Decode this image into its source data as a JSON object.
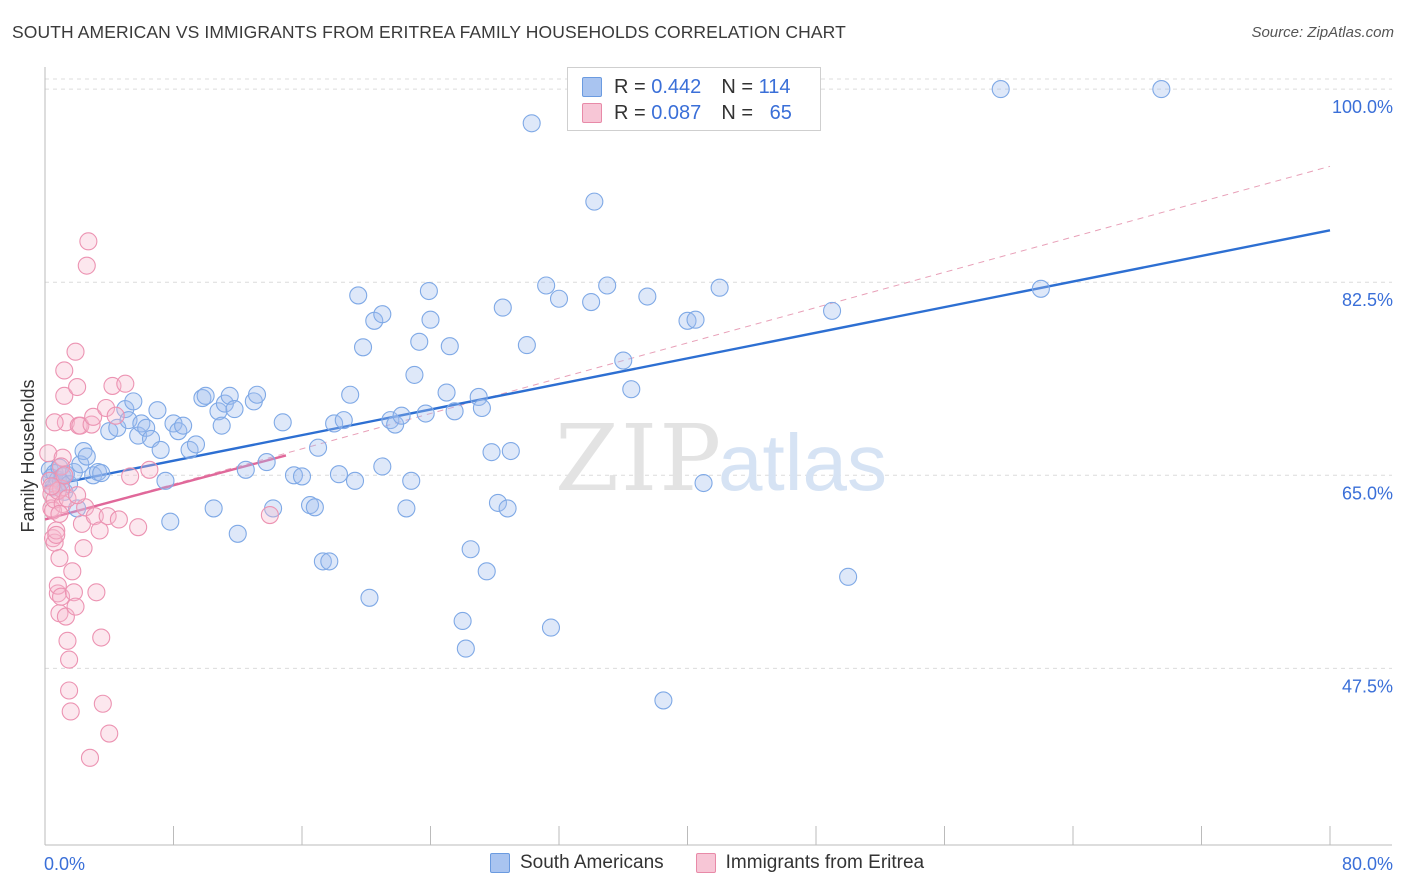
{
  "title": "SOUTH AMERICAN VS IMMIGRANTS FROM ERITREA FAMILY HOUSEHOLDS CORRELATION CHART",
  "source": "Source: ZipAtlas.com",
  "watermark": {
    "zip": "ZIP",
    "atlas": "atlas"
  },
  "legend": {
    "r_label": "R =",
    "n_label": "N =",
    "rows": [
      {
        "r": "0.442",
        "n": "114",
        "color": "#a9c4f0",
        "stroke": "#6b9be0"
      },
      {
        "r": "0.087",
        "n": "65",
        "color": "#f7b9cd",
        "stroke": "#e88aa8"
      }
    ]
  },
  "bottom_legend": [
    "South Americans",
    "Immigrants from Eritrea"
  ],
  "chart_data": {
    "type": "scatter",
    "ylabel": "Family Households",
    "xlim": [
      0,
      80
    ],
    "ylim": [
      31.5,
      102
    ],
    "x_ticks": [
      "0.0%",
      "80.0%"
    ],
    "y_ticks": [
      {
        "value": 47.5,
        "label": "47.5%"
      },
      {
        "value": 65.0,
        "label": "65.0%"
      },
      {
        "value": 82.5,
        "label": "82.5%"
      },
      {
        "value": 100.0,
        "label": "100.0%"
      }
    ],
    "grid": true,
    "series": [
      {
        "name": "South Americans",
        "color": "#7fa9e6",
        "fill": "rgba(160,190,238,0.35)",
        "trend": {
          "x0": 0,
          "y0": 64.0,
          "x1": 80,
          "y1": 87.2,
          "color": "#2d6fd2"
        },
        "points": [
          [
            0.3,
            65.5
          ],
          [
            0.4,
            64.8
          ],
          [
            0.5,
            63.9
          ],
          [
            0.6,
            65.2
          ],
          [
            0.7,
            64.1
          ],
          [
            0.8,
            64.6
          ],
          [
            0.9,
            65.7
          ],
          [
            1.0,
            64.4
          ],
          [
            1.1,
            64.9
          ],
          [
            1.2,
            63.5
          ],
          [
            1.3,
            65.1
          ],
          [
            1.5,
            64.2
          ],
          [
            1.8,
            65.3
          ],
          [
            2.0,
            62.0
          ],
          [
            2.2,
            66.0
          ],
          [
            2.4,
            67.2
          ],
          [
            2.6,
            66.7
          ],
          [
            3.0,
            65.0
          ],
          [
            3.3,
            65.3
          ],
          [
            3.5,
            65.2
          ],
          [
            4.0,
            69.0
          ],
          [
            4.5,
            69.3
          ],
          [
            5.0,
            71.0
          ],
          [
            5.2,
            70.0
          ],
          [
            5.5,
            71.7
          ],
          [
            5.8,
            68.6
          ],
          [
            6.0,
            69.7
          ],
          [
            6.3,
            69.3
          ],
          [
            6.6,
            68.3
          ],
          [
            7.0,
            70.9
          ],
          [
            7.2,
            67.3
          ],
          [
            7.5,
            64.5
          ],
          [
            7.8,
            60.8
          ],
          [
            8.0,
            69.7
          ],
          [
            8.3,
            69.0
          ],
          [
            8.6,
            69.5
          ],
          [
            9.0,
            67.3
          ],
          [
            9.4,
            67.8
          ],
          [
            9.8,
            72.0
          ],
          [
            10.0,
            72.2
          ],
          [
            10.5,
            62.0
          ],
          [
            10.8,
            70.8
          ],
          [
            11.0,
            69.5
          ],
          [
            11.2,
            71.5
          ],
          [
            11.5,
            72.2
          ],
          [
            11.8,
            71.0
          ],
          [
            12.0,
            59.7
          ],
          [
            12.5,
            65.5
          ],
          [
            13.0,
            71.7
          ],
          [
            13.2,
            72.3
          ],
          [
            13.8,
            66.2
          ],
          [
            14.2,
            62.0
          ],
          [
            14.8,
            69.8
          ],
          [
            15.5,
            65.0
          ],
          [
            16.0,
            64.9
          ],
          [
            16.5,
            62.3
          ],
          [
            16.8,
            62.1
          ],
          [
            17.0,
            67.5
          ],
          [
            17.3,
            57.2
          ],
          [
            17.7,
            57.2
          ],
          [
            18.0,
            69.7
          ],
          [
            18.3,
            65.1
          ],
          [
            18.6,
            70.0
          ],
          [
            19.0,
            72.3
          ],
          [
            19.3,
            64.5
          ],
          [
            19.5,
            81.3
          ],
          [
            19.8,
            76.6
          ],
          [
            20.2,
            53.9
          ],
          [
            20.5,
            79.0
          ],
          [
            21.0,
            65.8
          ],
          [
            21.0,
            79.6
          ],
          [
            21.5,
            70.0
          ],
          [
            21.8,
            69.6
          ],
          [
            22.2,
            70.4
          ],
          [
            22.5,
            62.0
          ],
          [
            22.8,
            64.5
          ],
          [
            23.0,
            74.1
          ],
          [
            23.3,
            77.1
          ],
          [
            23.7,
            70.6
          ],
          [
            23.9,
            81.7
          ],
          [
            24.0,
            79.1
          ],
          [
            25.0,
            72.5
          ],
          [
            25.2,
            76.7
          ],
          [
            25.5,
            70.8
          ],
          [
            26.0,
            51.8
          ],
          [
            26.2,
            49.3
          ],
          [
            26.5,
            58.3
          ],
          [
            27.0,
            72.1
          ],
          [
            27.2,
            71.1
          ],
          [
            27.5,
            56.3
          ],
          [
            27.8,
            67.1
          ],
          [
            28.2,
            62.5
          ],
          [
            28.5,
            80.2
          ],
          [
            28.8,
            62.0
          ],
          [
            29.0,
            67.2
          ],
          [
            30.0,
            76.8
          ],
          [
            30.3,
            96.9
          ],
          [
            31.2,
            82.2
          ],
          [
            31.5,
            51.2
          ],
          [
            32.0,
            81.0
          ],
          [
            34.0,
            80.7
          ],
          [
            34.2,
            89.8
          ],
          [
            35.0,
            82.2
          ],
          [
            36.0,
            75.4
          ],
          [
            36.5,
            72.8
          ],
          [
            37.5,
            81.2
          ],
          [
            38.5,
            44.6
          ],
          [
            40.0,
            79.0
          ],
          [
            40.5,
            79.1
          ],
          [
            41.0,
            64.3
          ],
          [
            42.0,
            82.0
          ],
          [
            49.0,
            79.9
          ],
          [
            50.0,
            55.8
          ],
          [
            62.0,
            81.9
          ],
          [
            59.5,
            100.0
          ],
          [
            69.5,
            100.0
          ]
        ]
      },
      {
        "name": "Immigrants from Eritrea",
        "color": "#ec93b2",
        "fill": "rgba(247,185,205,0.35)",
        "trend": {
          "x0": 0,
          "y0": 61.0,
          "x1": 15,
          "y1": 66.8,
          "color": "#e0689a"
        },
        "dashed_trend": {
          "x0": 0,
          "y0": 61.0,
          "x1": 80,
          "y1": 93.0,
          "color": "#e8a0b8"
        },
        "points": [
          [
            0.2,
            67.0
          ],
          [
            0.3,
            64.5
          ],
          [
            0.4,
            63.3
          ],
          [
            0.4,
            62.0
          ],
          [
            0.5,
            61.8
          ],
          [
            0.5,
            59.3
          ],
          [
            0.6,
            58.9
          ],
          [
            0.6,
            62.8
          ],
          [
            0.7,
            60.0
          ],
          [
            0.7,
            59.6
          ],
          [
            0.8,
            54.3
          ],
          [
            0.8,
            55.0
          ],
          [
            0.9,
            52.5
          ],
          [
            0.9,
            57.5
          ],
          [
            1.0,
            54.0
          ],
          [
            1.0,
            63.8
          ],
          [
            1.1,
            62.4
          ],
          [
            1.1,
            66.6
          ],
          [
            1.2,
            72.2
          ],
          [
            1.2,
            74.5
          ],
          [
            1.3,
            69.8
          ],
          [
            1.3,
            52.2
          ],
          [
            1.4,
            50.0
          ],
          [
            1.5,
            48.3
          ],
          [
            1.5,
            45.5
          ],
          [
            1.6,
            43.6
          ],
          [
            1.7,
            56.3
          ],
          [
            1.8,
            54.4
          ],
          [
            1.9,
            53.1
          ],
          [
            1.9,
            76.2
          ],
          [
            2.0,
            73.0
          ],
          [
            2.1,
            69.5
          ],
          [
            2.2,
            69.5
          ],
          [
            2.3,
            60.6
          ],
          [
            2.4,
            58.4
          ],
          [
            2.5,
            62.1
          ],
          [
            2.6,
            84.0
          ],
          [
            2.7,
            86.2
          ],
          [
            2.8,
            39.4
          ],
          [
            2.9,
            69.6
          ],
          [
            3.0,
            70.3
          ],
          [
            3.1,
            61.3
          ],
          [
            3.2,
            54.4
          ],
          [
            3.4,
            60.0
          ],
          [
            3.5,
            50.3
          ],
          [
            3.6,
            44.3
          ],
          [
            3.8,
            71.1
          ],
          [
            3.9,
            61.3
          ],
          [
            4.0,
            41.6
          ],
          [
            4.2,
            73.1
          ],
          [
            4.4,
            70.4
          ],
          [
            4.6,
            61.0
          ],
          [
            5.0,
            73.3
          ],
          [
            5.3,
            64.9
          ],
          [
            5.8,
            60.3
          ],
          [
            6.5,
            65.5
          ],
          [
            14.0,
            61.4
          ],
          [
            0.6,
            69.8
          ],
          [
            0.8,
            63.6
          ],
          [
            1.0,
            65.8
          ],
          [
            1.2,
            65.0
          ],
          [
            0.4,
            64.0
          ],
          [
            0.9,
            61.5
          ],
          [
            1.4,
            62.9
          ],
          [
            2.0,
            63.2
          ]
        ]
      }
    ]
  }
}
